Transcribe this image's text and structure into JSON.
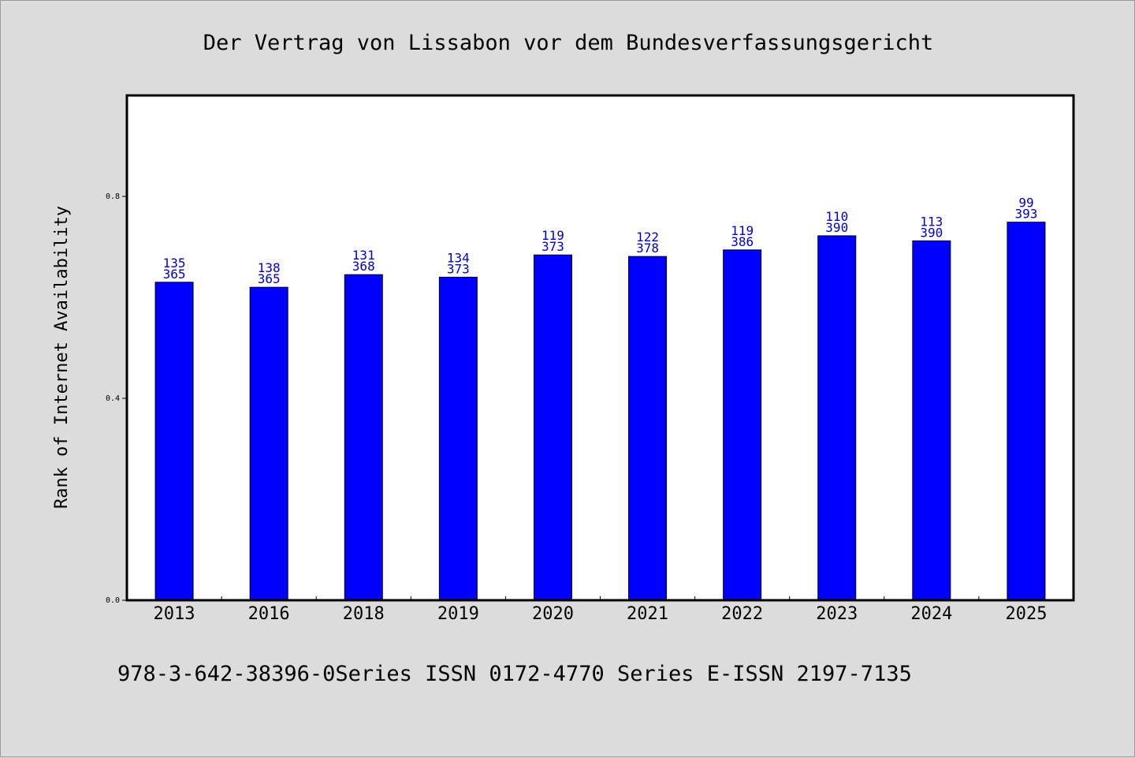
{
  "chart_data": {
    "type": "bar",
    "title": "Der Vertrag von Lissabon vor dem Bundesverfassungsgericht",
    "xlabel": "",
    "ylabel": "Rank of Internet Availability",
    "categories": [
      "2013",
      "2016",
      "2018",
      "2019",
      "2020",
      "2021",
      "2022",
      "2023",
      "2024",
      "2025"
    ],
    "values": [
      0.63,
      0.62,
      0.645,
      0.64,
      0.684,
      0.681,
      0.694,
      0.722,
      0.712,
      0.749
    ],
    "bar_labels_top": [
      "135",
      "138",
      "131",
      "134",
      "119",
      "122",
      "119",
      "110",
      "113",
      "99"
    ],
    "bar_labels_bottom": [
      "365",
      "365",
      "368",
      "373",
      "373",
      "378",
      "386",
      "390",
      "390",
      "393"
    ],
    "yticks": [
      "0.0",
      "0.4",
      "0.8"
    ],
    "ytick_values": [
      0.0,
      0.4,
      0.8
    ],
    "ylim": [
      0,
      1.0
    ],
    "bar_color": "#0000ff",
    "label_color": "#0000cc",
    "grid": false,
    "legend": "none"
  },
  "footer": {
    "text": "978-3-642-38396-0Series ISSN 0172-4770 Series E-ISSN 2197-7135"
  }
}
